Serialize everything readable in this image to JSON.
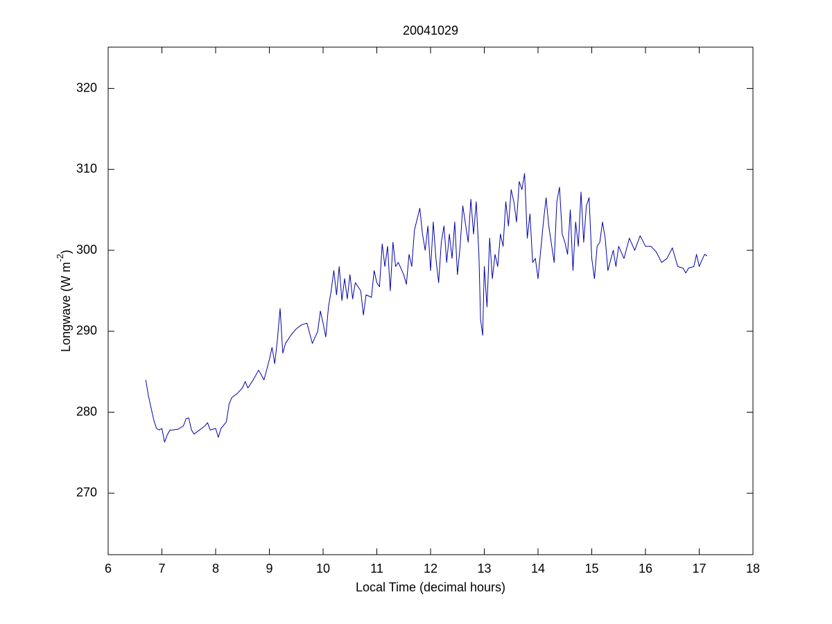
{
  "chart_data": {
    "type": "line",
    "title": "20041029",
    "xlabel": "Local Time (decimal hours)",
    "ylabel": [
      "Longwave (W m",
      "-2",
      ")"
    ],
    "xlim": [
      6,
      18
    ],
    "ylim": [
      262.4,
      325.1
    ],
    "xticks": [
      6,
      7,
      8,
      9,
      10,
      11,
      12,
      13,
      14,
      15,
      16,
      17,
      18
    ],
    "yticks": [
      270,
      280,
      290,
      300,
      310,
      320
    ],
    "grid": false,
    "series": [
      {
        "name": "Longwave",
        "color": "#0000a8",
        "x": [
          6.7,
          6.75,
          6.8,
          6.85,
          6.9,
          6.95,
          7.0,
          7.05,
          7.1,
          7.15,
          7.2,
          7.3,
          7.4,
          7.45,
          7.5,
          7.55,
          7.6,
          7.7,
          7.8,
          7.85,
          7.9,
          8.0,
          8.05,
          8.1,
          8.2,
          8.25,
          8.3,
          8.4,
          8.5,
          8.55,
          8.6,
          8.7,
          8.8,
          8.9,
          9.0,
          9.05,
          9.1,
          9.15,
          9.2,
          9.25,
          9.3,
          9.4,
          9.5,
          9.6,
          9.7,
          9.8,
          9.9,
          9.95,
          10.0,
          10.05,
          10.1,
          10.15,
          10.2,
          10.25,
          10.3,
          10.35,
          10.4,
          10.45,
          10.5,
          10.55,
          10.6,
          10.7,
          10.75,
          10.8,
          10.9,
          10.95,
          11.0,
          11.05,
          11.1,
          11.15,
          11.2,
          11.25,
          11.3,
          11.35,
          11.4,
          11.5,
          11.55,
          11.6,
          11.65,
          11.7,
          11.8,
          11.85,
          11.9,
          11.95,
          12.0,
          12.05,
          12.1,
          12.15,
          12.2,
          12.25,
          12.3,
          12.35,
          12.4,
          12.45,
          12.5,
          12.55,
          12.6,
          12.7,
          12.75,
          12.8,
          12.85,
          12.9,
          12.93,
          12.97,
          13.0,
          13.05,
          13.1,
          13.15,
          13.2,
          13.25,
          13.3,
          13.35,
          13.4,
          13.45,
          13.5,
          13.55,
          13.6,
          13.65,
          13.7,
          13.75,
          13.8,
          13.85,
          13.9,
          13.95,
          14.0,
          14.1,
          14.15,
          14.2,
          14.3,
          14.35,
          14.4,
          14.45,
          14.5,
          14.55,
          14.6,
          14.65,
          14.7,
          14.75,
          14.8,
          14.85,
          14.9,
          14.95,
          15.0,
          15.05,
          15.1,
          15.15,
          15.2,
          15.25,
          15.3,
          15.4,
          15.45,
          15.5,
          15.6,
          15.7,
          15.8,
          15.9,
          16.0,
          16.1,
          16.2,
          16.3,
          16.4,
          16.5,
          16.6,
          16.7,
          16.75,
          16.8,
          16.9,
          16.95,
          17.0,
          17.05,
          17.1,
          17.15
        ],
        "values": [
          284,
          282,
          280.5,
          279,
          278,
          277.8,
          278,
          276.3,
          277.2,
          277.8,
          277.8,
          277.9,
          278.3,
          279.2,
          279.3,
          277.8,
          277.3,
          277.8,
          278.3,
          278.7,
          277.8,
          278,
          276.9,
          278,
          278.8,
          281,
          281.8,
          282.3,
          283,
          283.8,
          283,
          284,
          285.2,
          284,
          286.5,
          288,
          286,
          289,
          292.8,
          287.3,
          288.5,
          289.5,
          290.3,
          290.8,
          291,
          288.5,
          290,
          292.5,
          291,
          289.3,
          293,
          295,
          297.5,
          294.5,
          298,
          293.8,
          296.5,
          294,
          297,
          294,
          296,
          295,
          292,
          294.5,
          294.2,
          297.5,
          296,
          295.5,
          300.8,
          298,
          300.5,
          295,
          301,
          298,
          298.5,
          297,
          295.8,
          299.5,
          298,
          302.5,
          305.2,
          302,
          300,
          303,
          297.5,
          303.5,
          299,
          296,
          301,
          303,
          298.5,
          302,
          299,
          303.5,
          297,
          300.5,
          305.5,
          301,
          306.3,
          302,
          306,
          299.5,
          291.5,
          289.5,
          298,
          293,
          301.5,
          296.5,
          299.5,
          298,
          302,
          300.5,
          306,
          303,
          307.5,
          306,
          303.5,
          308.5,
          307.5,
          309.5,
          301.5,
          304.5,
          298.5,
          299,
          296.5,
          303.5,
          306.5,
          303,
          298.5,
          306,
          307.8,
          302,
          301,
          299.5,
          305,
          297.5,
          303.5,
          300.5,
          307.2,
          301,
          305.5,
          306.5,
          299,
          296.5,
          300.5,
          301,
          303.5,
          301.5,
          297.5,
          300,
          298,
          300.5,
          299,
          301.5,
          300,
          301.8,
          300.5,
          300.5,
          299.8,
          298.5,
          299,
          300.3,
          298,
          297.8,
          297.2,
          297.8,
          298,
          299.5,
          298,
          298.8,
          299.5,
          299.3
        ]
      }
    ]
  }
}
